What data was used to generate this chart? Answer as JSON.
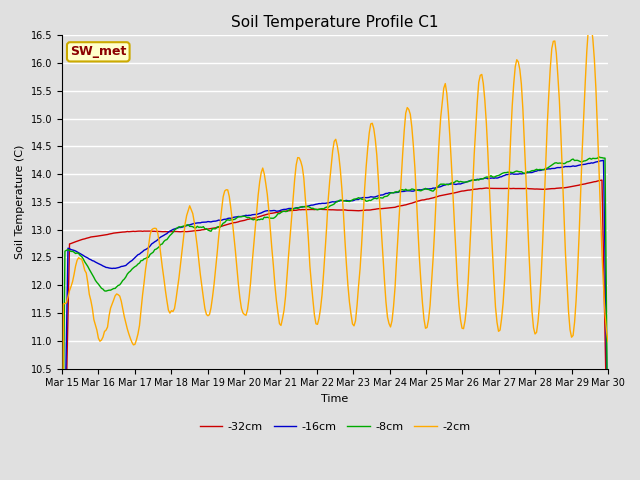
{
  "title": "Soil Temperature Profile C1",
  "xlabel": "Time",
  "ylabel": "Soil Temperature (C)",
  "ylim": [
    10.5,
    16.5
  ],
  "legend_label": "SW_met",
  "series_labels": [
    "-32cm",
    "-16cm",
    "-8cm",
    "-2cm"
  ],
  "series_colors": [
    "#cc0000",
    "#0000cc",
    "#00aa00",
    "#ffaa00"
  ],
  "x_tick_labels": [
    "Mar 15",
    "Mar 16",
    "Mar 17",
    "Mar 18",
    "Mar 19",
    "Mar 20",
    "Mar 21",
    "Mar 22",
    "Mar 23",
    "Mar 24",
    "Mar 25",
    "Mar 26",
    "Mar 27",
    "Mar 28",
    "Mar 29",
    "Mar 30"
  ],
  "bg_color": "#e0e0e0",
  "grid_color": "#ffffff",
  "title_fontsize": 11,
  "axis_fontsize": 8,
  "tick_fontsize": 7,
  "legend_fontsize": 8,
  "line_width": 1.0
}
